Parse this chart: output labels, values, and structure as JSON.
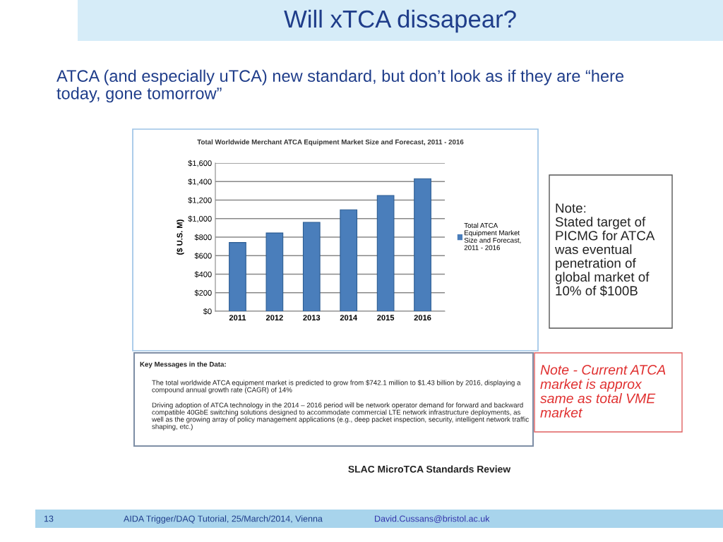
{
  "chart_data": {
    "type": "bar",
    "title": "Will xTCA dissapear?",
    "subtitle": "Total Worldwide Merchant ATCA Equipment Market Size and Forecast, 2011 - 2016",
    "ylabel": "($ U.S. M)",
    "categories": [
      "2011",
      "2012",
      "2013",
      "2014",
      "2015",
      "2016"
    ],
    "series": [
      {
        "name": "Total ATCA Equipment Market Size and Forecast, 2011 - 2016",
        "color": "#4a7ebb",
        "values": [
          742.1,
          845,
          960,
          1095,
          1250,
          1430
        ]
      }
    ],
    "ylim": [
      0,
      1600
    ],
    "yticks": [
      {
        "value": 0,
        "label": "$0"
      },
      {
        "value": 200,
        "label": "$200"
      },
      {
        "value": 400,
        "label": "$400"
      },
      {
        "value": 600,
        "label": "$600"
      },
      {
        "value": 800,
        "label": "$800"
      },
      {
        "value": 1000,
        "label": "$1,000"
      },
      {
        "value": 1200,
        "label": "$1,200"
      },
      {
        "value": 1400,
        "label": "$1,400"
      },
      {
        "value": 1600,
        "label": "$1,600"
      }
    ],
    "grid": "y",
    "legend": "right",
    "annotations": [
      "ATCA (and especially uTCA) new standard, but don’t look as if they are “here today, gone tomorrow”",
      "Key Messages in the Data:",
      "The total worldwide ATCA equipment market is predicted to grow from $742.1 million to $1.43 billion by 2016, displaying a compound annual growth rate (CAGR) of 14%",
      "Driving adoption of ATCA technology in the 2014 – 2016 period will be network operator demand for forward and backward compatible 40GbE switching solutions designed to accommodate commercial LTE network infrastructure deployments, as well as the growing array of policy management applications (e.g., deep packet inspection, security, intelligent network traffic shaping, etc.)",
      "Note:\nStated target of PICMG for ATCA was eventual penetration of global market of 10% of $100B",
      "Note - Current ATCA  market is approx same as total VME market",
      "SLAC MicroTCA Standards Review",
      "13",
      "AIDA Trigger/DAQ Tutorial, 25/March/2014, Vienna",
      "David.Cussans@bristol.ac.uk"
    ]
  }
}
